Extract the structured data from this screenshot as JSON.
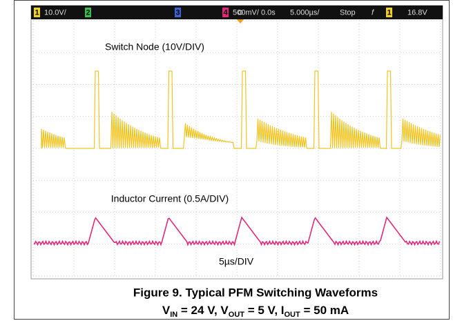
{
  "scope": {
    "status": {
      "ch1_num": "1",
      "ch1_scale": "10.0V/",
      "ch2_num": "2",
      "ch3_num": "3",
      "ch4_num": "4",
      "ch4_scale": "500mV/",
      "delay": "0.0s",
      "timebase": "5.000µs/",
      "run_state": "Stop",
      "trigger_slope": "f",
      "trigger_ch": "1",
      "trigger_level": "16.8V"
    },
    "labels": {
      "switch_node": "Switch Node (10V/DIV)",
      "inductor_current": "Inductor Current (0.5A/DIV)",
      "time_div": "5µs/DIV"
    }
  },
  "caption": {
    "line1": "Figure 9. Typical PFM Switching Waveforms",
    "line2": [
      "V",
      "IN",
      " = 24 V, V",
      "OUT",
      " = 5 V, I",
      "OUT",
      " = 50 mA"
    ]
  }
}
